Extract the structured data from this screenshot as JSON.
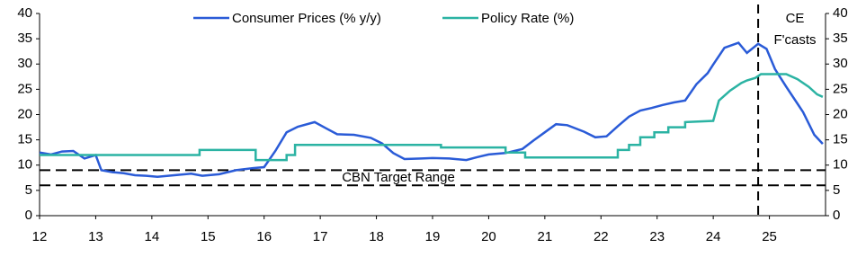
{
  "chart_data": {
    "type": "line",
    "xlim": [
      12,
      26
    ],
    "xticks": [
      12,
      13,
      14,
      15,
      16,
      17,
      18,
      19,
      20,
      21,
      22,
      23,
      24,
      25
    ],
    "ylim": [
      0,
      40
    ],
    "yticks": [
      0,
      5,
      10,
      15,
      20,
      25,
      30,
      35,
      40
    ],
    "y2lim": [
      0,
      40
    ],
    "y2ticks": [
      0,
      5,
      10,
      15,
      20,
      25,
      30,
      35,
      40
    ],
    "legend": "top",
    "series": [
      {
        "name": "Consumer Prices (% y/y)",
        "color": "#2a5bd7",
        "x": [
          12.0,
          12.2,
          12.4,
          12.6,
          12.8,
          13.0,
          13.1,
          13.3,
          13.5,
          13.7,
          13.9,
          14.1,
          14.4,
          14.7,
          14.9,
          15.2,
          15.5,
          15.8,
          16.0,
          16.2,
          16.4,
          16.6,
          16.9,
          17.1,
          17.3,
          17.6,
          17.9,
          18.1,
          18.3,
          18.5,
          18.8,
          19.0,
          19.3,
          19.6,
          19.8,
          20.0,
          20.3,
          20.6,
          20.8,
          21.0,
          21.2,
          21.4,
          21.7,
          21.9,
          22.1,
          22.3,
          22.5,
          22.7,
          22.9,
          23.1,
          23.3,
          23.5,
          23.7,
          23.9,
          24.0,
          24.2,
          24.45,
          24.6,
          24.8,
          24.95,
          25.1,
          25.3,
          25.6,
          25.8,
          25.95
        ],
        "values": [
          12.5,
          12.1,
          12.7,
          12.8,
          11.3,
          12.0,
          9.0,
          8.6,
          8.4,
          8.0,
          7.9,
          7.7,
          8.0,
          8.3,
          7.9,
          8.2,
          9.0,
          9.4,
          9.6,
          12.8,
          16.5,
          17.6,
          18.5,
          17.3,
          16.1,
          16.0,
          15.4,
          14.3,
          12.4,
          11.2,
          11.3,
          11.4,
          11.3,
          11.0,
          11.6,
          12.1,
          12.4,
          13.2,
          14.9,
          16.5,
          18.1,
          17.9,
          16.6,
          15.5,
          15.7,
          17.7,
          19.6,
          20.8,
          21.3,
          21.9,
          22.4,
          22.8,
          26.0,
          28.2,
          29.9,
          33.2,
          34.2,
          32.2,
          34.0,
          33.0,
          29.0,
          25.5,
          20.5,
          16.0,
          14.2
        ]
      },
      {
        "name": "Policy Rate (%)",
        "color": "#2bb3a3",
        "x": [
          12.0,
          14.85,
          14.85,
          15.85,
          15.85,
          16.4,
          16.4,
          16.55,
          16.55,
          19.15,
          19.15,
          20.3,
          20.3,
          20.65,
          20.65,
          22.3,
          22.3,
          22.5,
          22.5,
          22.7,
          22.7,
          22.95,
          22.95,
          23.2,
          23.2,
          23.5,
          23.5,
          24.0,
          24.1,
          24.3,
          24.5,
          24.6,
          24.75,
          24.85,
          25.3,
          25.5,
          25.7,
          25.85,
          25.95
        ],
        "values": [
          12.0,
          12.0,
          13.0,
          13.0,
          11.0,
          11.0,
          12.0,
          12.0,
          14.0,
          14.0,
          13.5,
          13.5,
          12.5,
          12.5,
          11.5,
          11.5,
          13.0,
          13.0,
          14.0,
          14.0,
          15.5,
          15.5,
          16.5,
          16.5,
          17.5,
          17.5,
          18.5,
          18.75,
          22.75,
          24.75,
          26.25,
          26.75,
          27.25,
          28.0,
          28.0,
          27.0,
          25.5,
          24.0,
          23.5
        ]
      }
    ],
    "target_range": [
      6,
      9
    ],
    "target_label": "CBN Target Range",
    "forecast_start": 24.8,
    "forecast_label": [
      "CE",
      "F'casts"
    ]
  }
}
